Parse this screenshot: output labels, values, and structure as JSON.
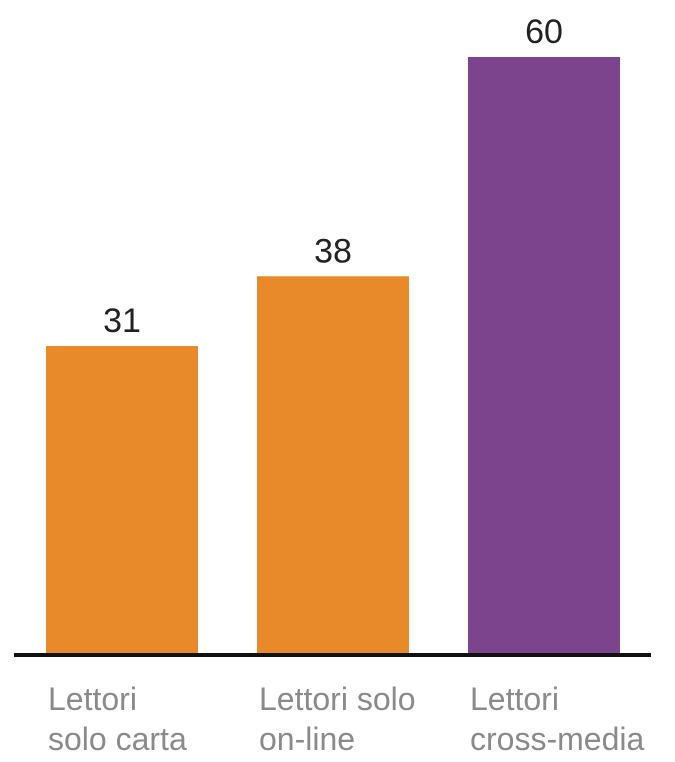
{
  "chart_data": {
    "type": "bar",
    "categories": [
      [
        "Lettori",
        "solo carta"
      ],
      [
        "Lettori solo",
        "on-line"
      ],
      [
        "Lettori",
        "cross-media"
      ]
    ],
    "values": [
      31,
      38,
      60
    ],
    "colors": [
      "#e8892a",
      "#e8892a",
      "#7b448d"
    ],
    "axis_color": "#111111",
    "ylim": [
      0,
      60
    ],
    "grid": false,
    "title": "",
    "xlabel": "",
    "ylabel": ""
  }
}
